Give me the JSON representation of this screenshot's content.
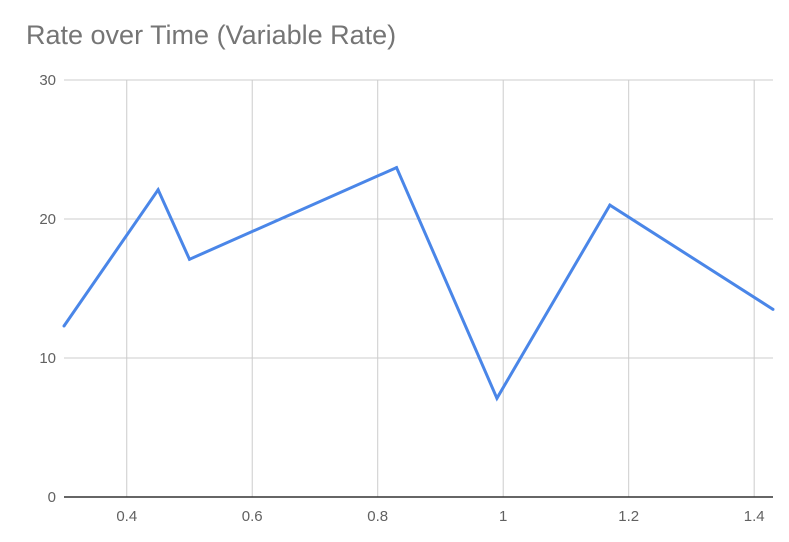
{
  "chart_data": {
    "type": "line",
    "title": "Rate over Time (Variable Rate)",
    "xlabel": "",
    "ylabel": "",
    "xlim": [
      0.3,
      1.43
    ],
    "ylim": [
      0,
      30
    ],
    "x_ticks": [
      0.4,
      0.6,
      0.8,
      1,
      1.2,
      1.4
    ],
    "x_tick_labels": [
      "0.4",
      "0.6",
      "0.8",
      "1",
      "1.2",
      "1.4"
    ],
    "y_ticks": [
      0,
      10,
      20,
      30
    ],
    "y_tick_labels": [
      "0",
      "10",
      "20",
      "30"
    ],
    "grid": true,
    "legend": "none",
    "series": [
      {
        "color": "#4a86e8",
        "x": [
          0.3,
          0.45,
          0.5,
          0.83,
          0.99,
          1.17,
          1.43
        ],
        "y": [
          12.3,
          22.1,
          17.1,
          23.7,
          7.1,
          21.0,
          13.5
        ]
      }
    ]
  }
}
